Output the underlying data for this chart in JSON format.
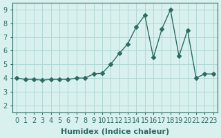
{
  "x": [
    0,
    1,
    2,
    3,
    4,
    5,
    6,
    7,
    8,
    9,
    10,
    11,
    12,
    13,
    14,
    15,
    16,
    17,
    18,
    19,
    20,
    21,
    22,
    23
  ],
  "y": [
    4.0,
    3.9,
    3.9,
    3.85,
    3.9,
    3.9,
    3.9,
    4.0,
    4.0,
    4.3,
    4.35,
    5.0,
    5.8,
    6.5,
    7.75,
    8.6,
    5.5,
    7.6,
    9.0,
    5.6,
    7.5,
    4.0,
    4.3,
    4.3
  ],
  "line_color": "#2d6b64",
  "marker": "D",
  "marker_size": 3,
  "bg_color": "#d8f0ee",
  "grid_color": "#b0d8d4",
  "xlabel": "Humidex (Indice chaleur)",
  "ylabel": "",
  "xlim": [
    -0.5,
    23.5
  ],
  "ylim": [
    1.5,
    9.5
  ],
  "xticks": [
    0,
    1,
    2,
    3,
    4,
    5,
    6,
    7,
    8,
    9,
    10,
    11,
    12,
    13,
    14,
    15,
    16,
    17,
    18,
    19,
    20,
    21,
    22,
    23
  ],
  "yticks": [
    2,
    3,
    4,
    5,
    6,
    7,
    8,
    9
  ],
  "tick_color": "#2d6b64",
  "label_fontsize": 7,
  "axis_label_fontsize": 8
}
